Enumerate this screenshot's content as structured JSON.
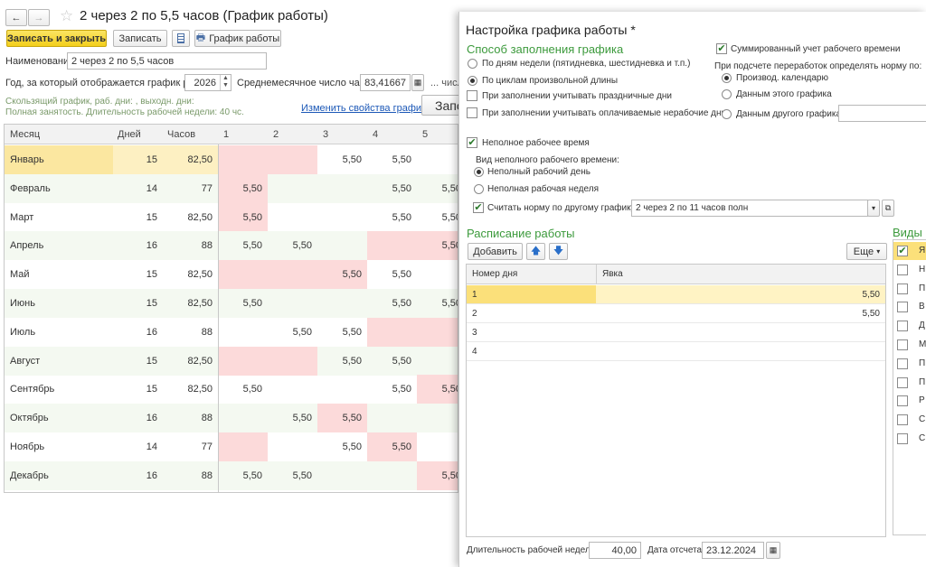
{
  "header": {
    "title": "2 через 2 по 5,5 часов (График работы)",
    "save_close": "Записать и закрыть",
    "save": "Записать",
    "schedule_btn": "График работы"
  },
  "form": {
    "name_label": "Наименование:",
    "name_value": "2 через 2 по 5,5 часов",
    "year_label": "Год, за который отображается график работы:",
    "year_value": "2026",
    "avg_label": "Среднемесячное число часов:",
    "avg_value": "83,41667",
    "num_label": "... числ",
    "desc1": "Скользящий график, раб. дни: , выходн. дни:",
    "desc2": "Полная занятость. Длительность рабочей недели: 40 чс.",
    "change_link": "Изменить свойства графика...",
    "cut_button": "Запо"
  },
  "grid": {
    "headers": [
      "Месяц",
      "Дней",
      "Часов",
      "1",
      "2",
      "3",
      "4",
      "5"
    ],
    "rows": [
      {
        "month": "Январь",
        "days": "15",
        "hours": "82,50",
        "d": [
          "",
          "",
          "5,50",
          "5,50",
          ""
        ],
        "pink": [
          1,
          1,
          0,
          0,
          0
        ]
      },
      {
        "month": "Февраль",
        "days": "14",
        "hours": "77",
        "d": [
          "5,50",
          "",
          "",
          "5,50",
          "5,50"
        ],
        "pink": [
          1,
          0,
          0,
          0,
          0
        ]
      },
      {
        "month": "Март",
        "days": "15",
        "hours": "82,50",
        "d": [
          "5,50",
          "",
          "",
          "5,50",
          "5,50"
        ],
        "pink": [
          1,
          0,
          0,
          0,
          0
        ]
      },
      {
        "month": "Апрель",
        "days": "16",
        "hours": "88",
        "d": [
          "5,50",
          "5,50",
          "",
          "",
          "5,50"
        ],
        "pink": [
          0,
          0,
          0,
          1,
          1
        ]
      },
      {
        "month": "Май",
        "days": "15",
        "hours": "82,50",
        "d": [
          "",
          "",
          "5,50",
          "5,50",
          ""
        ],
        "pink": [
          1,
          1,
          1,
          0,
          0
        ]
      },
      {
        "month": "Июнь",
        "days": "15",
        "hours": "82,50",
        "d": [
          "5,50",
          "",
          "",
          "5,50",
          "5,50"
        ],
        "pink": [
          0,
          0,
          0,
          0,
          0
        ]
      },
      {
        "month": "Июль",
        "days": "16",
        "hours": "88",
        "d": [
          "",
          "5,50",
          "5,50",
          "",
          ""
        ],
        "pink": [
          0,
          0,
          0,
          1,
          1
        ]
      },
      {
        "month": "Август",
        "days": "15",
        "hours": "82,50",
        "d": [
          "",
          "",
          "5,50",
          "5,50",
          ""
        ],
        "pink": [
          1,
          1,
          0,
          0,
          0
        ]
      },
      {
        "month": "Сентябрь",
        "days": "15",
        "hours": "82,50",
        "d": [
          "5,50",
          "",
          "",
          "5,50",
          "5,50"
        ],
        "pink": [
          0,
          0,
          0,
          0,
          1
        ]
      },
      {
        "month": "Октябрь",
        "days": "16",
        "hours": "88",
        "d": [
          "",
          "5,50",
          "5,50",
          "",
          ""
        ],
        "pink": [
          0,
          0,
          1,
          0,
          0
        ]
      },
      {
        "month": "Ноябрь",
        "days": "14",
        "hours": "77",
        "d": [
          "",
          "",
          "5,50",
          "5,50",
          ""
        ],
        "pink": [
          1,
          0,
          0,
          1,
          0
        ]
      },
      {
        "month": "Декабрь",
        "days": "16",
        "hours": "88",
        "d": [
          "5,50",
          "5,50",
          "",
          "",
          "5,50"
        ],
        "pink": [
          0,
          0,
          0,
          0,
          1
        ]
      }
    ]
  },
  "dialog": {
    "title": "Настройка графика работы *",
    "fill_method": "Способ заполнения графика",
    "by_weekdays": "По дням недели (пятидневка, шестидневка и т.п.)",
    "by_cycles": "По циклам произвольной длины",
    "holidays": "При заполнении учитывать праздничные дни",
    "nonwork": "При заполнении учитывать оплачиваемые нерабочие дни",
    "summed": "Суммированный учет рабочего времени",
    "overtime_norm": "При подсчете переработок определять норму по:",
    "prod_cal": "Производ. календарю",
    "this_sched": "Данным этого графика",
    "other_sched": "Данным другого графика",
    "part_time": "Неполное рабочее время",
    "part_kind": "Вид неполного рабочего времени:",
    "part_day": "Неполный рабочий день",
    "part_week": "Неполная рабочая неделя",
    "norm_other": "Считать норму по другому графику:",
    "norm_other_value": "2 через 2 по 11 часов полн",
    "schedule": "Расписание работы",
    "add": "Добавить",
    "more": "Еще",
    "col_day": "Номер дня",
    "col_attend": "Явка",
    "sched_rows": [
      {
        "day": "1",
        "val": "5,50"
      },
      {
        "day": "2",
        "val": "5,50"
      },
      {
        "day": "3",
        "val": ""
      },
      {
        "day": "4",
        "val": ""
      }
    ],
    "week_len_label": "Длительность рабочей недели:",
    "week_len": "40,00",
    "ref_date_label": "Дата отсчета:",
    "ref_date": "23.12.2024",
    "kinds_title": "Виды в",
    "kinds_items": [
      "Я",
      "Н",
      "П",
      "В",
      "Д",
      "М",
      "П",
      "П",
      "Р",
      "С",
      "С"
    ]
  }
}
